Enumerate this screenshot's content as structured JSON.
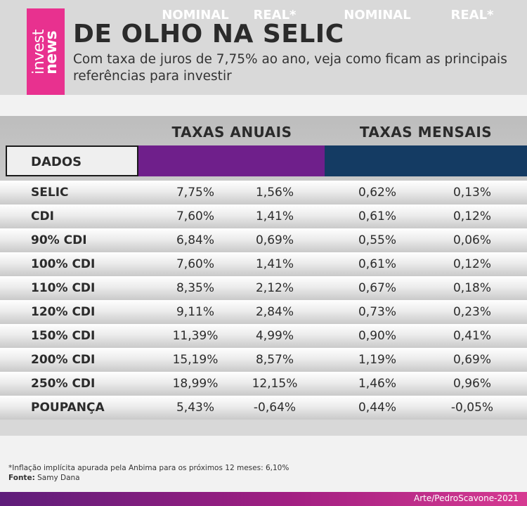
{
  "logo": {
    "line1": "invest",
    "line2": "news"
  },
  "header": {
    "title": "DE OLHO NA SELIC",
    "subtitle": "Com taxa de juros de 7,75% ao ano, veja como ficam as principais referências para investir"
  },
  "table": {
    "group_annual": "TAXAS ANUAIS",
    "group_monthly": "TAXAS MENSAIS",
    "header_dados": "DADOS",
    "header_nominal_annual": "NOMINAL",
    "header_real_annual": "REAL*",
    "header_nominal_monthly": "NOMINAL",
    "header_real_monthly": "REAL*",
    "rows": [
      {
        "label": "SELIC",
        "annual_nominal": "7,75%",
        "annual_real": "1,56%",
        "monthly_nominal": "0,62%",
        "monthly_real": "0,13%"
      },
      {
        "label": "CDI",
        "annual_nominal": "7,60%",
        "annual_real": "1,41%",
        "monthly_nominal": "0,61%",
        "monthly_real": "0,12%"
      },
      {
        "label": "90% CDI",
        "annual_nominal": "6,84%",
        "annual_real": "0,69%",
        "monthly_nominal": "0,55%",
        "monthly_real": "0,06%"
      },
      {
        "label": "100% CDI",
        "annual_nominal": "7,60%",
        "annual_real": "1,41%",
        "monthly_nominal": "0,61%",
        "monthly_real": "0,12%"
      },
      {
        "label": "110% CDI",
        "annual_nominal": "8,35%",
        "annual_real": "2,12%",
        "monthly_nominal": "0,67%",
        "monthly_real": "0,18%"
      },
      {
        "label": "120% CDI",
        "annual_nominal": "9,11%",
        "annual_real": "2,84%",
        "monthly_nominal": "0,73%",
        "monthly_real": "0,23%"
      },
      {
        "label": "150% CDI",
        "annual_nominal": "11,39%",
        "annual_real": "4,99%",
        "monthly_nominal": "0,90%",
        "monthly_real": "0,41%"
      },
      {
        "label": "200% CDI",
        "annual_nominal": "15,19%",
        "annual_real": "8,57%",
        "monthly_nominal": "1,19%",
        "monthly_real": "0,69%"
      },
      {
        "label": "250% CDI",
        "annual_nominal": "18,99%",
        "annual_real": "12,15%",
        "monthly_nominal": "1,46%",
        "monthly_real": "0,96%"
      },
      {
        "label": "POUPANÇA",
        "annual_nominal": "5,43%",
        "annual_real": "-0,64%",
        "monthly_nominal": "0,44%",
        "monthly_real": "-0,05%"
      }
    ]
  },
  "footer": {
    "note": "*Inflação implícita apurada pela Anbima para os próximos 12 meses: 6,10%",
    "source_label": "Fonte:",
    "source_value": " Samy Dana",
    "credit": "Arte/PedroScavone-2021"
  },
  "colors": {
    "logo": "#e8318f",
    "annual_header": "#6f1f8b",
    "monthly_header": "#143b63"
  }
}
